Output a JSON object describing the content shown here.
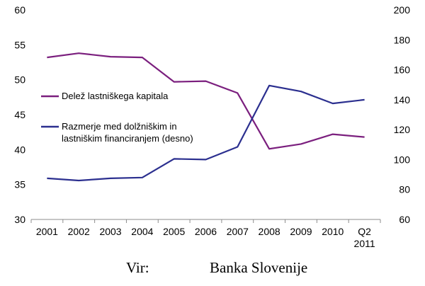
{
  "chart_data": {
    "type": "line",
    "categories": [
      "2001",
      "2002",
      "2003",
      "2004",
      "2005",
      "2006",
      "2007",
      "2008",
      "2009",
      "2010",
      "Q2\n2011"
    ],
    "series": [
      {
        "name": "Delež lastniškega kapitala",
        "axis": "left",
        "color": "#7b1f7e",
        "values": [
          53.2,
          53.8,
          53.3,
          53.2,
          49.7,
          49.8,
          48.1,
          40.1,
          40.8,
          42.2,
          41.8
        ]
      },
      {
        "name": "Razmerje med dolžniškim in lastniškim financiranjem (desno)",
        "name_lines": [
          "Razmerje med dolžniškim in",
          "lastniškim financiranjem (desno)"
        ],
        "axis": "right",
        "color": "#2b2f8f",
        "values": [
          87.5,
          86.0,
          87.5,
          88.0,
          100.5,
          100.0,
          108.5,
          149.5,
          145.5,
          137.5,
          140.0
        ]
      }
    ],
    "left_axis": {
      "ylim": [
        30,
        60
      ],
      "ticks": [
        30,
        35,
        40,
        45,
        50,
        55,
        60
      ]
    },
    "right_axis": {
      "ylim": [
        60,
        200
      ],
      "ticks": [
        60,
        80,
        100,
        120,
        140,
        160,
        180,
        200
      ]
    },
    "grid": false,
    "legend_position": "center-left"
  },
  "source": {
    "label": "Vir:",
    "value": "Banka Slovenije"
  }
}
